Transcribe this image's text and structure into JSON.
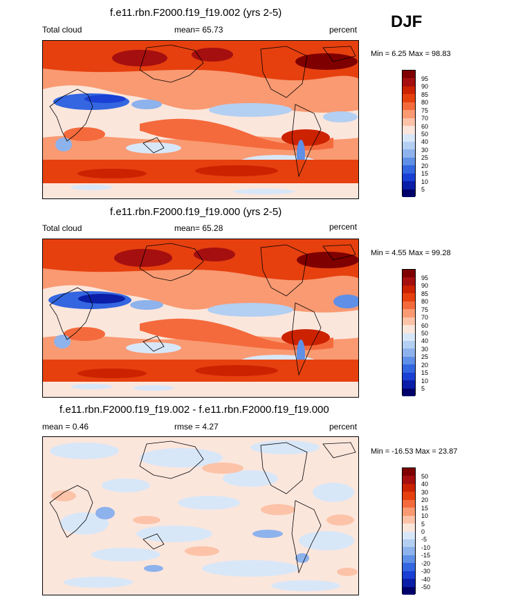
{
  "season": "DJF",
  "panels": [
    {
      "title": "f.e11.rbn.F2000.f19_f19.002 (yrs 2-5)",
      "left_label": "Total cloud",
      "center_label": "mean=  65.73",
      "right_label": "percent",
      "minmax": "Min =   6.25 Max =  98.83",
      "levels": [
        "95",
        "90",
        "85",
        "80",
        "75",
        "70",
        "60",
        "50",
        "40",
        "30",
        "25",
        "20",
        "15",
        "10",
        "5"
      ]
    },
    {
      "title": "f.e11.rbn.F2000.f19_f19.000 (yrs 2-5)",
      "left_label": "Total cloud",
      "center_label": "mean=  65.28",
      "right_label": "percent",
      "minmax": "Min =   4.55 Max =  99.28",
      "levels": [
        "95",
        "90",
        "85",
        "80",
        "75",
        "70",
        "60",
        "50",
        "40",
        "30",
        "25",
        "20",
        "15",
        "10",
        "5"
      ]
    },
    {
      "title": "f.e11.rbn.F2000.f19_f19.002 - f.e11.rbn.F2000.f19_f19.000",
      "left_label": "mean =   0.46",
      "center_label": "rmse =   4.27",
      "right_label": "percent",
      "minmax": "Min = -16.53 Max =  23.87",
      "levels": [
        "50",
        "40",
        "30",
        "20",
        "15",
        "10",
        "5",
        "0",
        "-5",
        "-10",
        "-15",
        "-20",
        "-30",
        "-40",
        "-50"
      ]
    }
  ],
  "colors": {
    "scale": [
      "#7f0000",
      "#a50f0f",
      "#cc2200",
      "#e6400f",
      "#f46a3c",
      "#f99a72",
      "#fcc3a8",
      "#fbe6dc",
      "#d8e7f8",
      "#b3cff2",
      "#8db2ec",
      "#5f8fe6",
      "#3366e0",
      "#1a3fd4",
      "#0a1ea8",
      "#00006b"
    ]
  }
}
